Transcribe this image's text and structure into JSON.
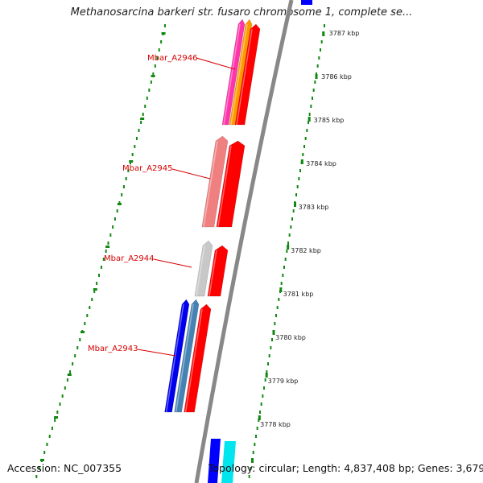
{
  "title": "Methanosarcina barkeri str. fusaro chromosome 1, complete se...",
  "footer": {
    "accession": "Accession: NC_007355",
    "summary": "Topology: circular; Length: 4,837,408 bp; Genes: 3,679"
  },
  "scale_labels": [
    "3787 kbp",
    "3786 kbp",
    "3785 kbp",
    "3784 kbp",
    "3783 kbp",
    "3782 kbp",
    "3781 kbp",
    "3780 kbp",
    "3779 kbp",
    "3778 kbp"
  ],
  "genes": [
    {
      "locus": "Mbar_A2946",
      "colors": [
        "#ff33aa",
        "#ff9900",
        "#ff0000"
      ]
    },
    {
      "locus": "Mbar_A2945",
      "colors": [
        "#f08080",
        "#ff0000"
      ]
    },
    {
      "locus": "Mbar_A2944",
      "colors": [
        "#c8c8c8",
        "#ff0000"
      ]
    },
    {
      "locus": "Mbar_A2943",
      "colors": [
        "#0000ee",
        "#4682b4",
        "#ff0000"
      ]
    }
  ],
  "colors": {
    "backbone": "#888888",
    "ticks": "#118811",
    "label": "#d40000",
    "edge_blue": "#0000ff",
    "edge_cyan": "#00e5ee"
  }
}
